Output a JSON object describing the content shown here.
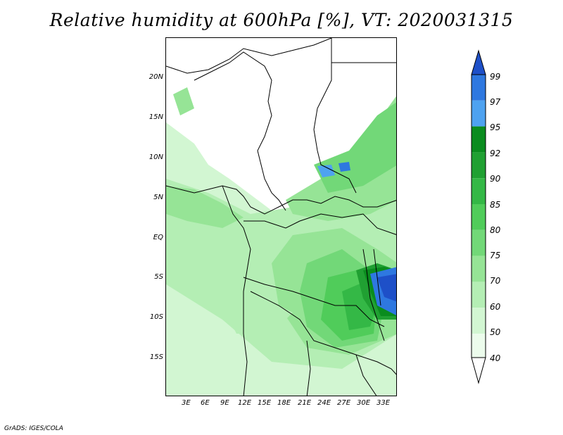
{
  "title": "Relative humidity at 600hPa [%], VT: 2020031315",
  "lat_labels": [
    "20N",
    "15N",
    "10N",
    "5N",
    "EQ",
    "5S",
    "10S",
    "15S"
  ],
  "lon_labels": [
    "3E",
    "6E",
    "9E",
    "12E",
    "15E",
    "18E",
    "21E",
    "24E",
    "27E",
    "30E",
    "33E"
  ],
  "colorbar": {
    "levels": [
      "99",
      "97",
      "95",
      "92",
      "90",
      "85",
      "80",
      "75",
      "70",
      "60",
      "50",
      "40"
    ],
    "colors": [
      "#1e50c8",
      "#2e78e0",
      "#4ea2f0",
      "#0a8c1e",
      "#20a032",
      "#34b846",
      "#50cc5a",
      "#72d878",
      "#96e496",
      "#b4eeb4",
      "#d2f6d2",
      "#ecfcec"
    ]
  },
  "credit": "GrADS: IGES/COLA"
}
